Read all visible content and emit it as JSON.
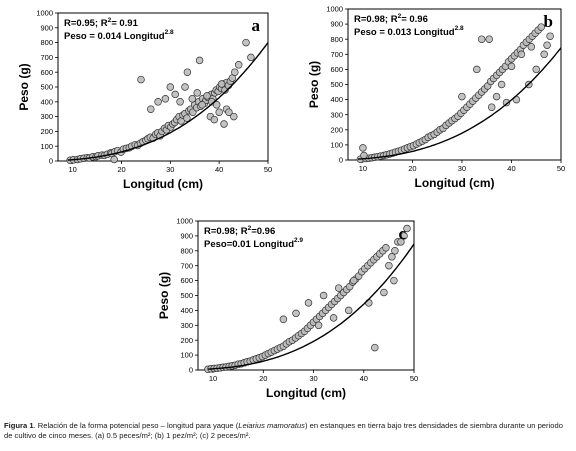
{
  "chart_data": [
    {
      "type": "scatter",
      "panel": "a",
      "xlabel": "Longitud (cm)",
      "ylabel": "Peso (g)",
      "xlim": [
        7,
        50
      ],
      "ylim": [
        0,
        1000
      ],
      "xticks": [
        10,
        20,
        30,
        40,
        50
      ],
      "yticks": [
        0,
        100,
        200,
        300,
        400,
        500,
        600,
        700,
        800,
        900,
        1000
      ],
      "annotation": {
        "line1_r": "R=0.95; R",
        "line1_sup": "2",
        "line1_val": "= 0.91",
        "line2": "Peso = 0.014 Longitud",
        "line2_sup": "2.8"
      },
      "fit": {
        "a": 0.014,
        "b": 2.8,
        "x_range": [
          9,
          50
        ]
      },
      "grid": false,
      "series": [
        {
          "x": [
            9.5,
            10.2,
            11.0,
            11.6,
            12.3,
            13.0,
            13.4,
            14.1,
            14.8,
            15.2,
            16.0,
            16.5,
            17.1,
            17.8,
            18.0,
            18.6,
            19.2,
            19.9,
            20.4,
            21.0,
            21.6,
            22.1,
            22.8,
            23.3,
            23.9,
            24.4,
            25.0,
            25.4,
            25.9,
            26.5,
            27.0,
            27.4,
            27.9,
            28.3,
            28.8,
            29.2,
            29.6,
            30.1,
            30.5,
            30.9,
            31.3,
            31.8,
            32.2,
            32.6,
            33.0,
            33.4,
            33.8,
            34.2,
            34.6,
            35.0,
            35.4,
            35.8,
            36.2,
            36.6,
            37.0,
            37.3,
            37.7,
            38.0,
            38.4,
            38.7,
            39.1,
            39.4,
            39.8,
            40.1,
            40.5,
            40.8,
            41.2,
            41.5,
            41.9,
            42.3,
            42.7,
            43.2,
            44.0,
            45.5,
            46.5,
            24.0,
            26.0,
            29.0,
            31.0,
            33.0,
            35.5,
            37.5,
            38.5,
            39.5,
            40.5,
            41.5,
            42.0,
            43.0,
            18.5,
            32.0,
            34.5,
            36.5,
            38.2,
            39.0,
            40.0,
            41.0,
            36.0,
            33.5,
            30.0,
            27.5
          ],
          "y": [
            5,
            8,
            10,
            15,
            18,
            22,
            20,
            28,
            30,
            35,
            40,
            38,
            45,
            55,
            50,
            62,
            70,
            60,
            80,
            85,
            90,
            100,
            110,
            105,
            120,
            130,
            140,
            150,
            160,
            155,
            180,
            190,
            170,
            200,
            220,
            210,
            240,
            230,
            250,
            260,
            280,
            300,
            270,
            310,
            320,
            290,
            340,
            350,
            330,
            380,
            360,
            400,
            370,
            420,
            390,
            410,
            430,
            440,
            450,
            420,
            460,
            480,
            470,
            500,
            490,
            520,
            480,
            530,
            510,
            540,
            560,
            600,
            650,
            800,
            700,
            550,
            350,
            420,
            450,
            500,
            460,
            440,
            400,
            380,
            520,
            350,
            330,
            300,
            10,
            400,
            420,
            380,
            300,
            280,
            330,
            250,
            680,
            600,
            500,
            400
          ]
        }
      ]
    },
    {
      "type": "scatter",
      "panel": "b",
      "xlabel": "Longitud (cm)",
      "ylabel": "Peso (g)",
      "xlim": [
        7,
        50
      ],
      "ylim": [
        0,
        1000
      ],
      "xticks": [
        10,
        20,
        30,
        40,
        50
      ],
      "yticks": [
        0,
        100,
        200,
        300,
        400,
        500,
        600,
        700,
        800,
        900,
        1000
      ],
      "annotation": {
        "line1_r": "R=0.98; R",
        "line1_sup": "2",
        "line1_val": "= 0.96",
        "line2": "Peso = 0.013 Longitud",
        "line2_sup": "2.8"
      },
      "fit": {
        "a": 0.013,
        "b": 2.8,
        "x_range": [
          9,
          50
        ]
      },
      "grid": false,
      "series": [
        {
          "x": [
            9.5,
            10.0,
            10.6,
            11.2,
            11.8,
            12.4,
            13.0,
            13.6,
            14.2,
            14.8,
            15.4,
            16.0,
            16.6,
            17.2,
            17.8,
            18.4,
            19.0,
            19.6,
            20.2,
            20.8,
            21.4,
            22.0,
            22.6,
            23.2,
            23.8,
            24.4,
            25.0,
            25.6,
            26.2,
            26.8,
            27.4,
            28.0,
            28.6,
            29.2,
            29.8,
            30.4,
            31.0,
            31.6,
            32.2,
            32.8,
            33.4,
            34.0,
            34.6,
            35.2,
            35.8,
            36.4,
            37.0,
            37.6,
            38.2,
            38.8,
            39.4,
            40.0,
            40.6,
            41.2,
            41.8,
            42.4,
            43.0,
            43.6,
            44.2,
            44.8,
            45.4,
            46.0,
            46.6,
            47.2,
            47.8,
            10.2,
            30.0,
            33.0,
            34.0,
            35.5,
            38.0,
            41.0,
            43.5,
            45.0,
            40.0,
            42.0,
            44.0,
            36.0,
            39.0,
            37.0
          ],
          "y": [
            5,
            80,
            10,
            12,
            15,
            18,
            22,
            26,
            30,
            35,
            40,
            46,
            52,
            58,
            65,
            72,
            80,
            88,
            95,
            105,
            115,
            125,
            135,
            150,
            160,
            170,
            185,
            200,
            210,
            230,
            245,
            260,
            275,
            290,
            310,
            330,
            350,
            370,
            390,
            410,
            430,
            450,
            470,
            490,
            520,
            540,
            560,
            580,
            600,
            620,
            650,
            670,
            690,
            710,
            730,
            760,
            780,
            800,
            820,
            840,
            860,
            880,
            700,
            760,
            820,
            30,
            420,
            600,
            800,
            800,
            500,
            400,
            500,
            600,
            620,
            700,
            750,
            350,
            380,
            420
          ]
        }
      ]
    },
    {
      "type": "scatter",
      "panel": "c",
      "xlabel": "Longitud (cm)",
      "ylabel": "Peso (g)",
      "xlim": [
        7,
        50
      ],
      "ylim": [
        0,
        1000
      ],
      "xticks": [
        10,
        20,
        30,
        40,
        50
      ],
      "yticks": [
        0,
        100,
        200,
        300,
        400,
        500,
        600,
        700,
        800,
        900,
        1000
      ],
      "annotation": {
        "line1_r": "R=0.98; R",
        "line1_sup": "2",
        "line1_val": "=0.96",
        "line2": "Peso=0.01 Longitud",
        "line2_sup": "2.9"
      },
      "fit": {
        "a": 0.01,
        "b": 2.9,
        "x_range": [
          9,
          50
        ]
      },
      "grid": false,
      "series": [
        {
          "x": [
            9.0,
            9.6,
            10.2,
            10.8,
            11.4,
            12.0,
            12.6,
            13.2,
            13.8,
            14.4,
            15.0,
            15.6,
            16.2,
            16.8,
            17.4,
            18.0,
            18.6,
            19.2,
            19.8,
            20.4,
            21.0,
            21.6,
            22.2,
            22.8,
            23.4,
            24.0,
            24.6,
            25.2,
            25.8,
            26.4,
            27.0,
            27.6,
            28.2,
            28.8,
            29.4,
            30.0,
            30.6,
            31.2,
            31.8,
            32.4,
            33.0,
            33.6,
            34.2,
            34.8,
            35.4,
            36.0,
            36.6,
            37.2,
            37.8,
            38.4,
            39.0,
            39.6,
            40.2,
            40.8,
            41.4,
            42.0,
            42.6,
            43.2,
            43.8,
            44.4,
            45.0,
            45.6,
            46.2,
            46.8,
            47.4,
            48.0,
            48.6,
            42.2,
            38.0,
            35.0,
            32.0,
            29.0,
            26.5,
            24.0,
            44.0,
            46.0,
            41.0,
            37.0,
            34.0,
            31.0
          ],
          "y": [
            5,
            8,
            10,
            12,
            15,
            18,
            20,
            24,
            28,
            32,
            38,
            42,
            48,
            55,
            60,
            68,
            75,
            82,
            90,
            100,
            110,
            120,
            130,
            140,
            150,
            160,
            175,
            190,
            200,
            215,
            230,
            245,
            260,
            280,
            300,
            320,
            340,
            360,
            380,
            400,
            420,
            440,
            460,
            480,
            500,
            520,
            540,
            560,
            590,
            610,
            630,
            660,
            680,
            700,
            720,
            740,
            760,
            780,
            800,
            820,
            700,
            760,
            800,
            860,
            860,
            900,
            950,
            150,
            600,
            550,
            500,
            450,
            380,
            340,
            520,
            600,
            450,
            400,
            350,
            300
          ]
        }
      ]
    }
  ],
  "caption": {
    "label": "Figura 1",
    "text1": ". Relación de la forma potencial peso – longitud para yaque (",
    "species": "Leiarius mamoratus",
    "text2": ") en estanques en tierra bajo tres densidades de siembra durante un periodo de cultivo de cinco meses. (a) 0.5 peces/m²; (b) 1 pez/m²; (c) 2 peces/m²."
  }
}
